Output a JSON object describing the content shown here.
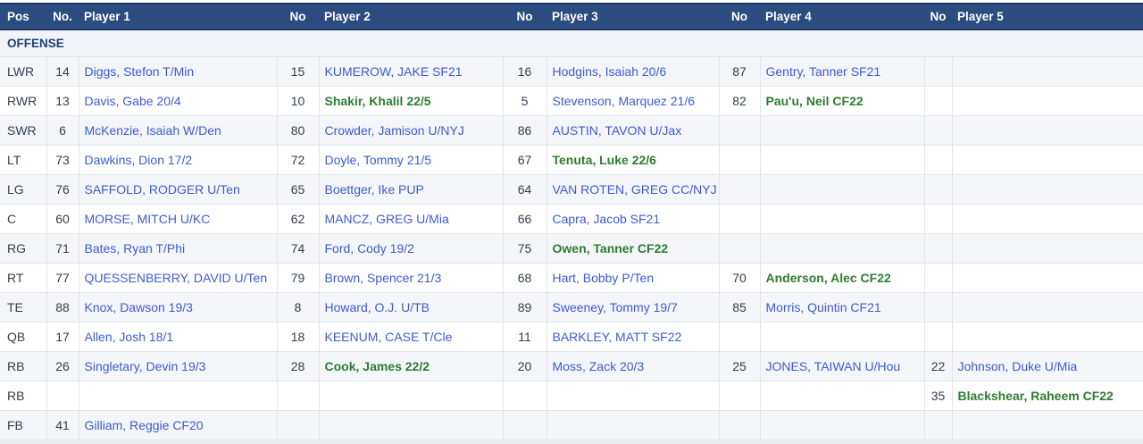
{
  "colors": {
    "header_bg": "#2b4c80",
    "header_border": "#1c3763",
    "section_bg": "#f1f4f9",
    "stripe": "#f4f6f9",
    "grid": "#e1e4e9",
    "link_blue": "#3d5bd5",
    "green": "#2e7d30",
    "text_dark": "#333e4e",
    "navy_text": "#1e4076",
    "page_bottom": "#e9ebee"
  },
  "table": {
    "section_label": "OFFENSE",
    "columns": [
      {
        "label": "Pos",
        "type": "pos"
      },
      {
        "label": "No.",
        "type": "num"
      },
      {
        "label": "Player 1",
        "type": "player"
      },
      {
        "label": "No",
        "type": "num"
      },
      {
        "label": "Player 2",
        "type": "player"
      },
      {
        "label": "No",
        "type": "num"
      },
      {
        "label": "Player 3",
        "type": "player"
      },
      {
        "label": "No",
        "type": "num"
      },
      {
        "label": "Player 4",
        "type": "player"
      },
      {
        "label": "No",
        "type": "num"
      },
      {
        "label": "Player 5",
        "type": "player"
      }
    ],
    "rows": [
      {
        "pos": "LWR",
        "players": [
          {
            "no": "14",
            "name": "Diggs, Stefon T/Min",
            "style": "blue"
          },
          {
            "no": "15",
            "name": "KUMEROW, JAKE SF21",
            "style": "blue"
          },
          {
            "no": "16",
            "name": "Hodgins, Isaiah 20/6",
            "style": "blue"
          },
          {
            "no": "87",
            "name": "Gentry, Tanner SF21",
            "style": "blue"
          },
          {
            "no": "",
            "name": "",
            "style": ""
          }
        ]
      },
      {
        "pos": "RWR",
        "players": [
          {
            "no": "13",
            "name": "Davis, Gabe 20/4",
            "style": "blue"
          },
          {
            "no": "10",
            "name": "Shakir, Khalil 22/5",
            "style": "green"
          },
          {
            "no": "5",
            "name": "Stevenson, Marquez 21/6",
            "style": "blue"
          },
          {
            "no": "82",
            "name": "Pau'u, Neil CF22",
            "style": "green"
          },
          {
            "no": "",
            "name": "",
            "style": ""
          }
        ]
      },
      {
        "pos": "SWR",
        "players": [
          {
            "no": "6",
            "name": "McKenzie, Isaiah W/Den",
            "style": "blue"
          },
          {
            "no": "80",
            "name": "Crowder, Jamison U/NYJ",
            "style": "blue"
          },
          {
            "no": "86",
            "name": "AUSTIN, TAVON U/Jax",
            "style": "blue"
          },
          {
            "no": "",
            "name": "",
            "style": ""
          },
          {
            "no": "",
            "name": "",
            "style": ""
          }
        ]
      },
      {
        "pos": "LT",
        "players": [
          {
            "no": "73",
            "name": "Dawkins, Dion 17/2",
            "style": "blue"
          },
          {
            "no": "72",
            "name": "Doyle, Tommy 21/5",
            "style": "blue"
          },
          {
            "no": "67",
            "name": "Tenuta, Luke 22/6",
            "style": "green"
          },
          {
            "no": "",
            "name": "",
            "style": ""
          },
          {
            "no": "",
            "name": "",
            "style": ""
          }
        ]
      },
      {
        "pos": "LG",
        "players": [
          {
            "no": "76",
            "name": "SAFFOLD, RODGER U/Ten",
            "style": "blue"
          },
          {
            "no": "65",
            "name": "Boettger, Ike PUP",
            "style": "blue"
          },
          {
            "no": "64",
            "name": "VAN ROTEN, GREG CC/NYJ",
            "style": "blue"
          },
          {
            "no": "",
            "name": "",
            "style": ""
          },
          {
            "no": "",
            "name": "",
            "style": ""
          }
        ]
      },
      {
        "pos": "C",
        "players": [
          {
            "no": "60",
            "name": "MORSE, MITCH U/KC",
            "style": "blue"
          },
          {
            "no": "62",
            "name": "MANCZ, GREG U/Mia",
            "style": "blue"
          },
          {
            "no": "66",
            "name": "Capra, Jacob SF21",
            "style": "blue"
          },
          {
            "no": "",
            "name": "",
            "style": ""
          },
          {
            "no": "",
            "name": "",
            "style": ""
          }
        ]
      },
      {
        "pos": "RG",
        "players": [
          {
            "no": "71",
            "name": "Bates, Ryan T/Phi",
            "style": "blue"
          },
          {
            "no": "74",
            "name": "Ford, Cody 19/2",
            "style": "blue"
          },
          {
            "no": "75",
            "name": "Owen, Tanner CF22",
            "style": "green"
          },
          {
            "no": "",
            "name": "",
            "style": ""
          },
          {
            "no": "",
            "name": "",
            "style": ""
          }
        ]
      },
      {
        "pos": "RT",
        "players": [
          {
            "no": "77",
            "name": "QUESSENBERRY, DAVID U/Ten",
            "style": "blue"
          },
          {
            "no": "79",
            "name": "Brown, Spencer 21/3",
            "style": "blue"
          },
          {
            "no": "68",
            "name": "Hart, Bobby P/Ten",
            "style": "blue"
          },
          {
            "no": "70",
            "name": "Anderson, Alec CF22",
            "style": "green"
          },
          {
            "no": "",
            "name": "",
            "style": ""
          }
        ]
      },
      {
        "pos": "TE",
        "players": [
          {
            "no": "88",
            "name": "Knox, Dawson 19/3",
            "style": "blue"
          },
          {
            "no": "8",
            "name": "Howard, O.J. U/TB",
            "style": "blue"
          },
          {
            "no": "89",
            "name": "Sweeney, Tommy 19/7",
            "style": "blue"
          },
          {
            "no": "85",
            "name": "Morris, Quintin CF21",
            "style": "blue"
          },
          {
            "no": "",
            "name": "",
            "style": ""
          }
        ]
      },
      {
        "pos": "QB",
        "players": [
          {
            "no": "17",
            "name": "Allen, Josh 18/1",
            "style": "blue"
          },
          {
            "no": "18",
            "name": "KEENUM, CASE T/Cle",
            "style": "blue"
          },
          {
            "no": "11",
            "name": "BARKLEY, MATT SF22",
            "style": "blue"
          },
          {
            "no": "",
            "name": "",
            "style": ""
          },
          {
            "no": "",
            "name": "",
            "style": ""
          }
        ]
      },
      {
        "pos": "RB",
        "players": [
          {
            "no": "26",
            "name": "Singletary, Devin 19/3",
            "style": "blue"
          },
          {
            "no": "28",
            "name": "Cook, James 22/2",
            "style": "green"
          },
          {
            "no": "20",
            "name": "Moss, Zack 20/3",
            "style": "blue"
          },
          {
            "no": "25",
            "name": "JONES, TAIWAN U/Hou",
            "style": "blue"
          },
          {
            "no": "22",
            "name": "Johnson, Duke U/Mia",
            "style": "blue"
          }
        ]
      },
      {
        "pos": "RB",
        "players": [
          {
            "no": "",
            "name": "",
            "style": ""
          },
          {
            "no": "",
            "name": "",
            "style": ""
          },
          {
            "no": "",
            "name": "",
            "style": ""
          },
          {
            "no": "",
            "name": "",
            "style": ""
          },
          {
            "no": "35",
            "name": "Blackshear, Raheem CF22",
            "style": "green"
          }
        ]
      },
      {
        "pos": "FB",
        "players": [
          {
            "no": "41",
            "name": "Gilliam, Reggie CF20",
            "style": "blue"
          },
          {
            "no": "",
            "name": "",
            "style": ""
          },
          {
            "no": "",
            "name": "",
            "style": ""
          },
          {
            "no": "",
            "name": "",
            "style": ""
          },
          {
            "no": "",
            "name": "",
            "style": ""
          }
        ]
      }
    ]
  }
}
